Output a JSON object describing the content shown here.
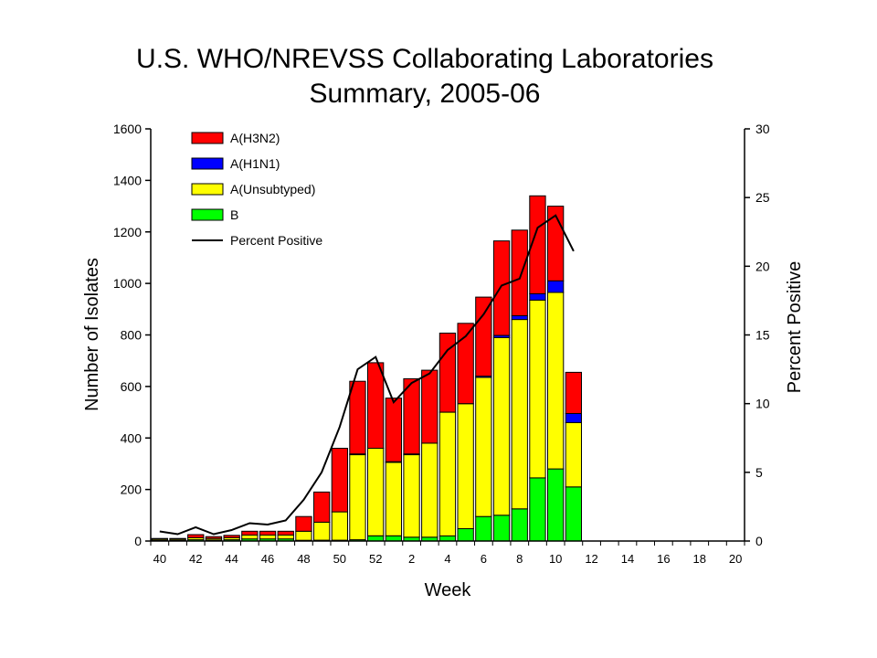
{
  "title_line1": "U.S. WHO/NREVSS Collaborating Laboratories",
  "title_line2": "Summary, 2005-06",
  "chart_data": {
    "type": "bar",
    "stacked": true,
    "xlabel": "Week",
    "ylabel": "Number of Isolates",
    "y2label": "Percent Positive",
    "ylim": [
      0,
      1600
    ],
    "y2lim": [
      0,
      30
    ],
    "yticks": [
      "0",
      "200",
      "400",
      "600",
      "800",
      "1000",
      "1200",
      "1400",
      "1600"
    ],
    "y2ticks": [
      "0",
      "5",
      "10",
      "15",
      "20",
      "25",
      "30"
    ],
    "categories": [
      "40",
      "41",
      "42",
      "43",
      "44",
      "45",
      "46",
      "47",
      "48",
      "49",
      "50",
      "51",
      "52",
      "1",
      "2",
      "3",
      "4",
      "5",
      "6",
      "7",
      "8",
      "9",
      "10",
      "11",
      "12",
      "13",
      "14",
      "15",
      "16",
      "17",
      "18",
      "19",
      "20"
    ],
    "xtick_labels": [
      "40",
      "42",
      "44",
      "46",
      "48",
      "50",
      "52",
      "2",
      "4",
      "6",
      "8",
      "10",
      "12",
      "14",
      "16",
      "18",
      "20"
    ],
    "legend_position": "top-left",
    "series": [
      {
        "name": "B",
        "color": "#00ff00",
        "values": [
          3,
          3,
          5,
          4,
          5,
          8,
          8,
          8,
          3,
          3,
          3,
          5,
          20,
          20,
          15,
          15,
          20,
          48,
          95,
          100,
          125,
          245,
          280,
          210,
          0,
          0,
          0,
          0,
          0,
          0,
          0,
          0,
          0
        ]
      },
      {
        "name": "A(Unsubtyped)",
        "color": "#ffff00",
        "values": [
          5,
          5,
          8,
          6,
          8,
          15,
          15,
          15,
          35,
          70,
          110,
          330,
          340,
          285,
          320,
          365,
          480,
          485,
          540,
          690,
          735,
          690,
          685,
          250,
          0,
          0,
          0,
          0,
          0,
          0,
          0,
          0,
          0
        ]
      },
      {
        "name": "A(H1N1)",
        "color": "#0000ff",
        "values": [
          0,
          0,
          0,
          0,
          0,
          0,
          0,
          0,
          0,
          0,
          0,
          3,
          0,
          3,
          3,
          0,
          0,
          0,
          5,
          8,
          15,
          25,
          45,
          35,
          0,
          0,
          0,
          0,
          0,
          0,
          0,
          0,
          0
        ]
      },
      {
        "name": "A(H3N2)",
        "color": "#ff0000",
        "values": [
          2,
          2,
          12,
          7,
          9,
          15,
          15,
          15,
          57,
          117,
          247,
          282,
          332,
          247,
          292,
          283,
          307,
          312,
          307,
          367,
          332,
          380,
          290,
          160,
          0,
          0,
          0,
          0,
          0,
          0,
          0,
          0,
          0
        ]
      }
    ],
    "line": {
      "name": "Percent Positive",
      "color": "#000000",
      "axis": "right",
      "values": [
        0.7,
        0.5,
        1.0,
        0.5,
        0.8,
        1.3,
        1.2,
        1.5,
        3.0,
        5.0,
        8.3,
        12.5,
        13.4,
        10.1,
        11.5,
        12.2,
        13.9,
        14.9,
        16.5,
        18.6,
        19.1,
        22.8,
        23.7,
        21.1,
        null,
        null,
        null,
        null,
        null,
        null,
        null,
        null,
        null
      ]
    }
  }
}
